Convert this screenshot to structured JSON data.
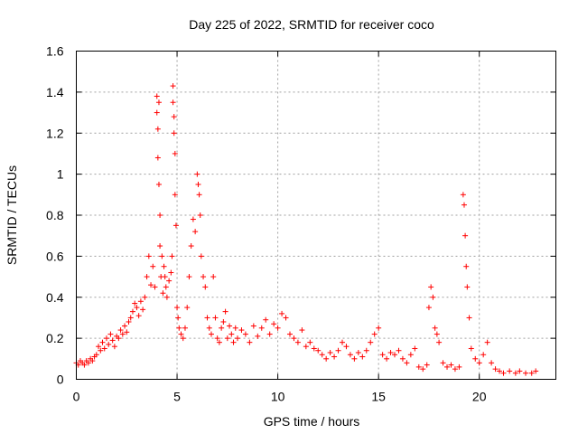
{
  "chart_data": {
    "type": "scatter",
    "title": "Day 225 of 2022, SRMTID for receiver coco",
    "xlabel": "GPS time / hours",
    "ylabel": "SRMTID / TECUs",
    "xlim": [
      0,
      23.8
    ],
    "ylim": [
      0,
      1.6
    ],
    "xticks": [
      0,
      5,
      10,
      15,
      20
    ],
    "yticks": [
      0,
      0.2,
      0.4,
      0.6,
      0.8,
      1,
      1.2,
      1.4,
      1.6
    ],
    "xtick_labels": [
      "0",
      "5",
      "10",
      "15",
      "20"
    ],
    "ytick_labels": [
      "0",
      "0.2",
      "0.4",
      "0.6",
      "0.8",
      "1",
      "1.2",
      "1.4",
      "1.6"
    ],
    "grid": true,
    "marker": "+",
    "color": "#ff0000",
    "series": [
      {
        "name": "coco",
        "points": [
          [
            0.0,
            0.08
          ],
          [
            0.1,
            0.07
          ],
          [
            0.2,
            0.09
          ],
          [
            0.3,
            0.08
          ],
          [
            0.4,
            0.07
          ],
          [
            0.5,
            0.09
          ],
          [
            0.6,
            0.08
          ],
          [
            0.7,
            0.1
          ],
          [
            0.8,
            0.09
          ],
          [
            0.9,
            0.11
          ],
          [
            1.0,
            0.12
          ],
          [
            1.1,
            0.16
          ],
          [
            1.2,
            0.14
          ],
          [
            1.3,
            0.18
          ],
          [
            1.4,
            0.15
          ],
          [
            1.5,
            0.2
          ],
          [
            1.6,
            0.17
          ],
          [
            1.7,
            0.22
          ],
          [
            1.8,
            0.19
          ],
          [
            1.9,
            0.16
          ],
          [
            2.0,
            0.21
          ],
          [
            2.1,
            0.2
          ],
          [
            2.2,
            0.24
          ],
          [
            2.3,
            0.22
          ],
          [
            2.4,
            0.26
          ],
          [
            2.5,
            0.23
          ],
          [
            2.6,
            0.28
          ],
          [
            2.7,
            0.3
          ],
          [
            2.8,
            0.33
          ],
          [
            2.9,
            0.37
          ],
          [
            3.0,
            0.35
          ],
          [
            3.1,
            0.31
          ],
          [
            3.2,
            0.38
          ],
          [
            3.3,
            0.34
          ],
          [
            3.4,
            0.4
          ],
          [
            3.5,
            0.5
          ],
          [
            3.6,
            0.6
          ],
          [
            3.7,
            0.46
          ],
          [
            3.8,
            0.55
          ],
          [
            3.9,
            0.45
          ],
          [
            4.0,
            1.38
          ],
          [
            4.0,
            1.3
          ],
          [
            4.05,
            1.22
          ],
          [
            4.05,
            1.08
          ],
          [
            4.1,
            1.35
          ],
          [
            4.1,
            0.95
          ],
          [
            4.15,
            0.8
          ],
          [
            4.15,
            0.65
          ],
          [
            4.2,
            0.5
          ],
          [
            4.25,
            0.6
          ],
          [
            4.3,
            0.42
          ],
          [
            4.35,
            0.55
          ],
          [
            4.4,
            0.5
          ],
          [
            4.45,
            0.45
          ],
          [
            4.5,
            0.4
          ],
          [
            4.6,
            0.48
          ],
          [
            4.7,
            0.52
          ],
          [
            4.75,
            0.6
          ],
          [
            4.8,
            1.43
          ],
          [
            4.8,
            1.35
          ],
          [
            4.85,
            1.28
          ],
          [
            4.85,
            1.2
          ],
          [
            4.9,
            1.1
          ],
          [
            4.9,
            0.9
          ],
          [
            4.95,
            0.75
          ],
          [
            5.0,
            0.35
          ],
          [
            5.05,
            0.3
          ],
          [
            5.1,
            0.25
          ],
          [
            5.2,
            0.22
          ],
          [
            5.3,
            0.2
          ],
          [
            5.4,
            0.25
          ],
          [
            5.5,
            0.35
          ],
          [
            5.6,
            0.5
          ],
          [
            5.7,
            0.65
          ],
          [
            5.8,
            0.78
          ],
          [
            5.9,
            0.72
          ],
          [
            6.0,
            1.0
          ],
          [
            6.05,
            0.95
          ],
          [
            6.1,
            0.9
          ],
          [
            6.15,
            0.8
          ],
          [
            6.2,
            0.6
          ],
          [
            6.3,
            0.5
          ],
          [
            6.4,
            0.45
          ],
          [
            6.5,
            0.3
          ],
          [
            6.6,
            0.25
          ],
          [
            6.7,
            0.22
          ],
          [
            6.8,
            0.5
          ],
          [
            6.9,
            0.3
          ],
          [
            7.0,
            0.2
          ],
          [
            7.1,
            0.18
          ],
          [
            7.2,
            0.25
          ],
          [
            7.3,
            0.28
          ],
          [
            7.4,
            0.33
          ],
          [
            7.5,
            0.2
          ],
          [
            7.6,
            0.26
          ],
          [
            7.7,
            0.22
          ],
          [
            7.8,
            0.18
          ],
          [
            7.9,
            0.25
          ],
          [
            8.0,
            0.2
          ],
          [
            8.2,
            0.24
          ],
          [
            8.4,
            0.22
          ],
          [
            8.6,
            0.18
          ],
          [
            8.8,
            0.26
          ],
          [
            9.0,
            0.21
          ],
          [
            9.2,
            0.25
          ],
          [
            9.4,
            0.29
          ],
          [
            9.6,
            0.22
          ],
          [
            9.8,
            0.27
          ],
          [
            10.0,
            0.25
          ],
          [
            10.2,
            0.32
          ],
          [
            10.4,
            0.3
          ],
          [
            10.6,
            0.22
          ],
          [
            10.8,
            0.2
          ],
          [
            11.0,
            0.18
          ],
          [
            11.2,
            0.24
          ],
          [
            11.4,
            0.16
          ],
          [
            11.6,
            0.18
          ],
          [
            11.8,
            0.15
          ],
          [
            12.0,
            0.14
          ],
          [
            12.2,
            0.12
          ],
          [
            12.4,
            0.1
          ],
          [
            12.6,
            0.13
          ],
          [
            12.8,
            0.11
          ],
          [
            13.0,
            0.14
          ],
          [
            13.2,
            0.18
          ],
          [
            13.4,
            0.16
          ],
          [
            13.6,
            0.12
          ],
          [
            13.8,
            0.1
          ],
          [
            14.0,
            0.13
          ],
          [
            14.2,
            0.11
          ],
          [
            14.4,
            0.14
          ],
          [
            14.6,
            0.18
          ],
          [
            14.8,
            0.22
          ],
          [
            15.0,
            0.25
          ],
          [
            15.2,
            0.12
          ],
          [
            15.4,
            0.1
          ],
          [
            15.6,
            0.13
          ],
          [
            15.8,
            0.12
          ],
          [
            16.0,
            0.14
          ],
          [
            16.2,
            0.1
          ],
          [
            16.4,
            0.08
          ],
          [
            16.6,
            0.12
          ],
          [
            16.8,
            0.15
          ],
          [
            17.0,
            0.06
          ],
          [
            17.2,
            0.05
          ],
          [
            17.4,
            0.07
          ],
          [
            17.5,
            0.35
          ],
          [
            17.6,
            0.45
          ],
          [
            17.7,
            0.4
          ],
          [
            17.8,
            0.25
          ],
          [
            17.9,
            0.22
          ],
          [
            18.0,
            0.18
          ],
          [
            18.2,
            0.08
          ],
          [
            18.4,
            0.06
          ],
          [
            18.6,
            0.07
          ],
          [
            18.8,
            0.05
          ],
          [
            19.0,
            0.06
          ],
          [
            19.2,
            0.9
          ],
          [
            19.25,
            0.85
          ],
          [
            19.3,
            0.7
          ],
          [
            19.35,
            0.55
          ],
          [
            19.4,
            0.45
          ],
          [
            19.5,
            0.3
          ],
          [
            19.6,
            0.15
          ],
          [
            19.8,
            0.1
          ],
          [
            20.0,
            0.08
          ],
          [
            20.2,
            0.12
          ],
          [
            20.4,
            0.18
          ],
          [
            20.6,
            0.08
          ],
          [
            20.8,
            0.05
          ],
          [
            21.0,
            0.04
          ],
          [
            21.2,
            0.03
          ],
          [
            21.5,
            0.04
          ],
          [
            21.8,
            0.03
          ],
          [
            22.0,
            0.04
          ],
          [
            22.3,
            0.03
          ],
          [
            22.6,
            0.03
          ],
          [
            22.8,
            0.04
          ]
        ]
      }
    ]
  }
}
